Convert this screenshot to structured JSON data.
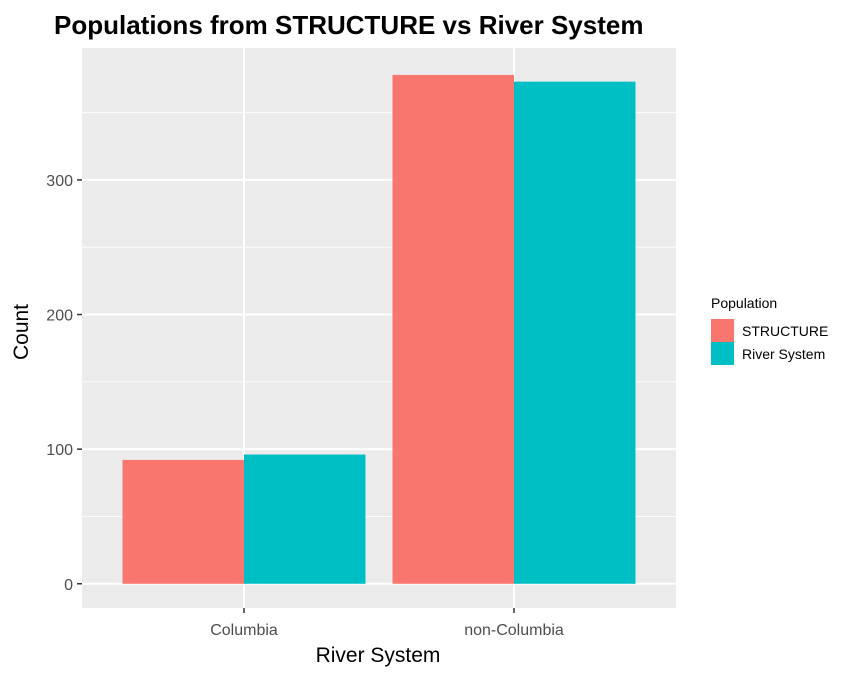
{
  "chart_data": {
    "type": "bar",
    "title": "Populations from STRUCTURE vs River System",
    "xlabel": "River System",
    "ylabel": "Count",
    "categories": [
      "Columbia",
      "non-Columbia"
    ],
    "series": [
      {
        "name": "STRUCTURE",
        "values": [
          92,
          378
        ],
        "color": "#F8766D"
      },
      {
        "name": "River System",
        "values": [
          96,
          373
        ],
        "color": "#00BFC4"
      }
    ],
    "ylim": [
      -18,
      398
    ],
    "yticks": [
      0,
      100,
      200,
      300
    ],
    "ytick_labels": [
      "0",
      "100",
      "200",
      "300"
    ],
    "grid": true,
    "panel_background": "#EBEBEB",
    "grid_color": "#FFFFFF",
    "legend": {
      "title": "Population",
      "position": "right",
      "items": [
        {
          "label": "STRUCTURE",
          "color": "#F8766D"
        },
        {
          "label": "River System",
          "color": "#00BFC4"
        }
      ]
    }
  }
}
